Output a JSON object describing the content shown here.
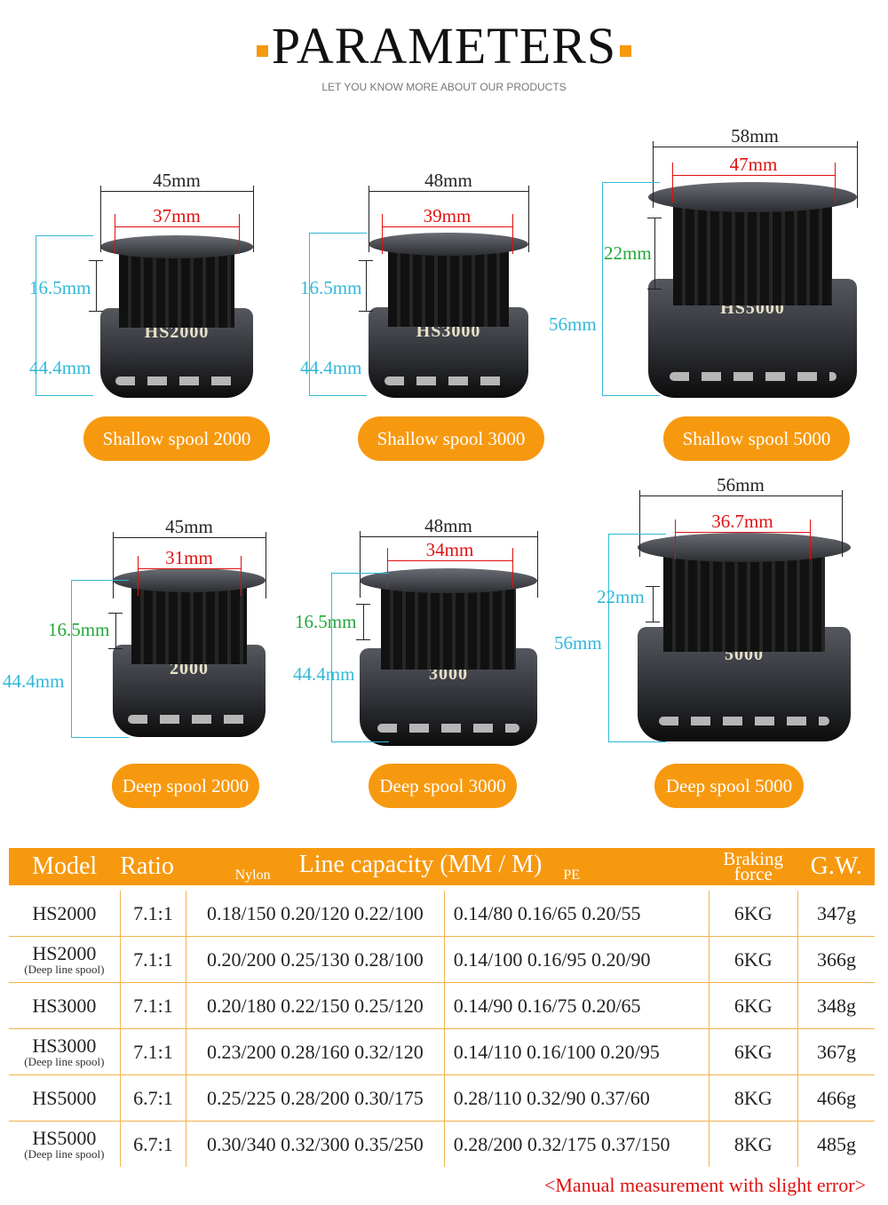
{
  "header": {
    "title": "PARAMETERS",
    "subtitle": "LET YOU KNOW MORE ABOUT OUR PRODUCTS",
    "accent": "#f7990f"
  },
  "spools": [
    {
      "name": "Shallow spool 2000",
      "print": "HS2000",
      "outer": "45mm",
      "inner": "37mm",
      "depth": "16.5mm",
      "height": "44.4mm"
    },
    {
      "name": "Shallow spool 3000",
      "print": "HS3000",
      "outer": "48mm",
      "inner": "39mm",
      "depth": "16.5mm",
      "height": "44.4mm"
    },
    {
      "name": "Shallow spool 5000",
      "print": "HS5000",
      "outer": "58mm",
      "inner": "47mm",
      "depth": "22mm",
      "height": "56mm"
    },
    {
      "name": "Deep spool 2000",
      "print": "2000",
      "outer": "45mm",
      "inner": "31mm",
      "depth": "16.5mm",
      "height": "44.4mm"
    },
    {
      "name": "Deep spool 3000",
      "print": "3000",
      "outer": "48mm",
      "inner": "34mm",
      "depth": "16.5mm",
      "height": "44.4mm"
    },
    {
      "name": "Deep spool 5000",
      "print": "5000",
      "outer": "56mm",
      "inner": "36.7mm",
      "depth": "22mm",
      "height": "56mm"
    }
  ],
  "table": {
    "headers": {
      "model": "Model",
      "ratio": "Ratio",
      "nylon": "Nylon",
      "capacity": "Line capacity (MM / M)",
      "pe": "PE",
      "braking": "Braking",
      "force": "force",
      "gw": "G.W."
    },
    "rows": [
      {
        "model": "HS2000",
        "sub": "",
        "ratio": "7.1:1",
        "nylon": "0.18/150 0.20/120 0.22/100",
        "pe": "0.14/80 0.16/65 0.20/55",
        "braking": "6KG",
        "gw": "347g"
      },
      {
        "model": "HS2000",
        "sub": "(Deep line spool)",
        "ratio": "7.1:1",
        "nylon": "0.20/200 0.25/130 0.28/100",
        "pe": "0.14/100 0.16/95 0.20/90",
        "braking": "6KG",
        "gw": "366g"
      },
      {
        "model": "HS3000",
        "sub": "",
        "ratio": "7.1:1",
        "nylon": "0.20/180 0.22/150 0.25/120",
        "pe": "0.14/90 0.16/75 0.20/65",
        "braking": "6KG",
        "gw": "348g"
      },
      {
        "model": "HS3000",
        "sub": "(Deep line spool)",
        "ratio": "7.1:1",
        "nylon": "0.23/200 0.28/160 0.32/120",
        "pe": "0.14/110 0.16/100 0.20/95",
        "braking": "6KG",
        "gw": "367g"
      },
      {
        "model": "HS5000",
        "sub": "",
        "ratio": "6.7:1",
        "nylon": "0.25/225 0.28/200 0.30/175",
        "pe": "0.28/110 0.32/90 0.37/60",
        "braking": "8KG",
        "gw": "466g"
      },
      {
        "model": "HS5000",
        "sub": "(Deep line spool)",
        "ratio": "6.7:1",
        "nylon": "0.30/340 0.32/300 0.35/250",
        "pe": "0.28/200 0.32/175 0.37/150",
        "braking": "8KG",
        "gw": "485g"
      }
    ]
  },
  "note": "<Manual measurement with slight error>"
}
